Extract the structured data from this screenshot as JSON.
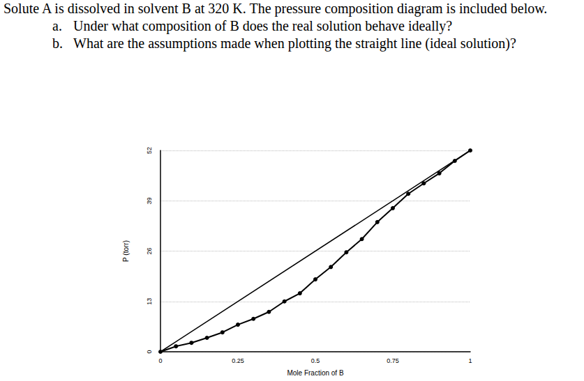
{
  "question": {
    "text": "Solute A is dissolved in solvent B at 320 K. The pressure composition diagram is included below.",
    "items": [
      {
        "label": "a.",
        "text": "Under what composition of B does the real solution behave ideally?"
      },
      {
        "label": "b.",
        "text": "What are the assumptions made when plotting the straight line (ideal solution)?"
      }
    ]
  },
  "chart_data": {
    "type": "line",
    "x_label": "Mole Fraction of B",
    "y_label": "P (torr)",
    "xlim": [
      0,
      1
    ],
    "xticks": [
      0,
      0.25,
      0.5,
      0.75,
      1
    ],
    "ylim": [
      0,
      52
    ],
    "yticks": [
      0,
      13,
      26,
      39,
      52
    ],
    "grid": true,
    "series": [
      {
        "type": "line",
        "marker": "none",
        "line_style": "solid",
        "color": "#000000",
        "x": [
          0,
          1
        ],
        "values": [
          0,
          52
        ]
      },
      {
        "type": "line",
        "marker": "circle",
        "line_style": "solid",
        "color": "#000000",
        "x": [
          0,
          0.05,
          0.1,
          0.15,
          0.2,
          0.25,
          0.3,
          0.35,
          0.4,
          0.45,
          0.5,
          0.55,
          0.6,
          0.65,
          0.7,
          0.75,
          0.8,
          0.85,
          0.9,
          0.95,
          1
        ],
        "values": [
          0,
          1.4,
          2.3,
          3.6,
          5.0,
          7.0,
          8.5,
          10.3,
          13.0,
          15.1,
          18.7,
          21.9,
          25.7,
          29.1,
          33.5,
          37.1,
          40.8,
          43.5,
          46.1,
          49.3,
          52
        ]
      }
    ]
  }
}
